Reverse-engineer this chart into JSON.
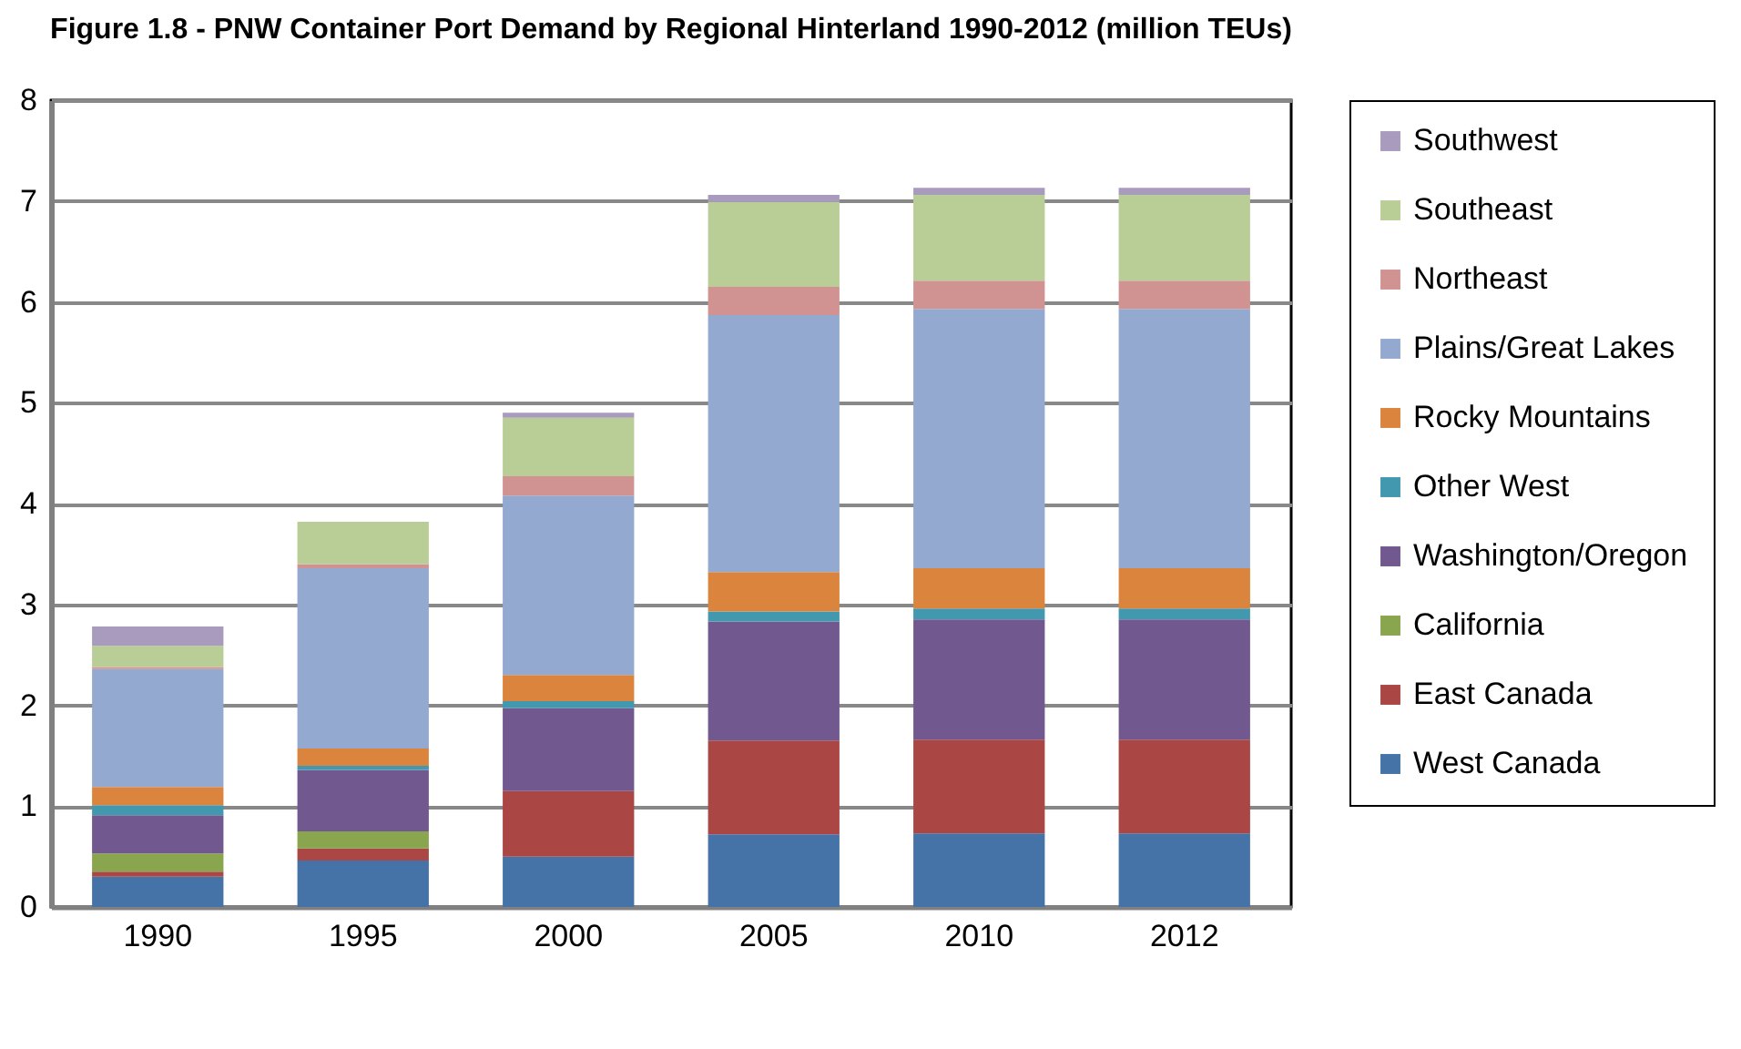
{
  "chart_data": {
    "type": "bar",
    "title": "Figure 1.8 - PNW Container Port Demand by Regional Hinterland 1990-2012 (million TEUs)",
    "categories": [
      "1990",
      "1995",
      "2000",
      "2005",
      "2010",
      "2012"
    ],
    "stacked": true,
    "series": [
      {
        "name": "West Canada",
        "color": "#4572a7",
        "values": [
          0.3,
          0.46,
          0.5,
          0.72,
          0.73,
          0.73
        ]
      },
      {
        "name": "East Canada",
        "color": "#aa4643",
        "values": [
          0.05,
          0.12,
          0.65,
          0.93,
          0.93,
          0.93
        ]
      },
      {
        "name": "California",
        "color": "#89a54e",
        "values": [
          0.18,
          0.17,
          0,
          0,
          0,
          0
        ]
      },
      {
        "name": "Washington/Oregon",
        "color": "#71588f",
        "values": [
          0.38,
          0.61,
          0.82,
          1.18,
          1.19,
          1.19
        ]
      },
      {
        "name": "Other West",
        "color": "#4198af",
        "values": [
          0.1,
          0.04,
          0.07,
          0.1,
          0.11,
          0.11
        ]
      },
      {
        "name": "Rocky Mountains",
        "color": "#db843d",
        "values": [
          0.18,
          0.17,
          0.26,
          0.39,
          0.4,
          0.4
        ]
      },
      {
        "name": "Plains/Great Lakes",
        "color": "#93a9cf",
        "values": [
          1.17,
          1.79,
          1.78,
          2.55,
          2.57,
          2.57
        ]
      },
      {
        "name": "Northeast",
        "color": "#d19392",
        "values": [
          0.02,
          0.04,
          0.19,
          0.28,
          0.28,
          0.28
        ]
      },
      {
        "name": "Southeast",
        "color": "#b9cd96",
        "values": [
          0.21,
          0.42,
          0.58,
          0.84,
          0.85,
          0.85
        ]
      },
      {
        "name": "Southwest",
        "color": "#a99bbd",
        "values": [
          0.19,
          0,
          0.05,
          0.07,
          0.07,
          0.07
        ]
      }
    ],
    "ylim": [
      0,
      8
    ],
    "yticks": [
      0,
      1,
      2,
      3,
      4,
      5,
      6,
      7,
      8
    ],
    "grid": "y",
    "legend": "right"
  }
}
